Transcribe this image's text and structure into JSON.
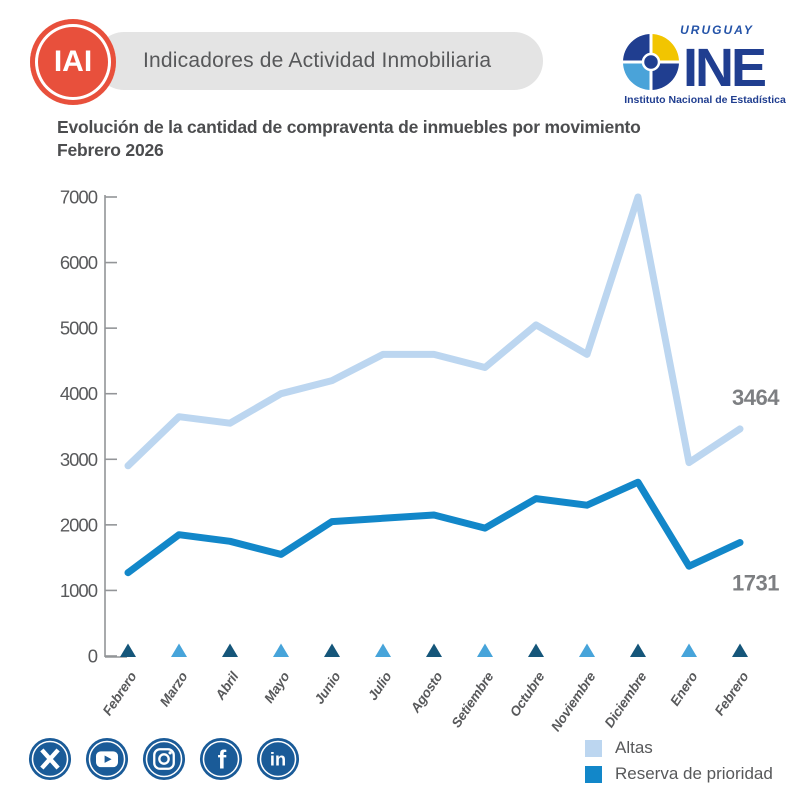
{
  "header": {
    "badge": "IAI",
    "title": "Indicadores de Actividad Inmobiliaria",
    "logo": {
      "country": "URUGUAY",
      "acronym": "INE",
      "subtitle": "Instituto Nacional de Estadística"
    }
  },
  "chart_title": {
    "line1": "Evolución de la cantidad de compraventa de inmuebles por movimiento",
    "line2": "Febrero 2026"
  },
  "chart_data": {
    "type": "line",
    "categories": [
      "Febrero",
      "Marzo",
      "Abril",
      "Mayo",
      "Junio",
      "Julio",
      "Agosto",
      "Setiembre",
      "Octubre",
      "Noviembre",
      "Diciembre",
      "Enero",
      "Febrero"
    ],
    "series": [
      {
        "name": "Altas",
        "color": "#bcd6f0",
        "values": [
          2900,
          3650,
          3550,
          4000,
          4200,
          4600,
          4600,
          4400,
          5050,
          4600,
          7000,
          2950,
          3464
        ],
        "end_label": "3464"
      },
      {
        "name": "Reserva de prioridad",
        "color": "#1287c9",
        "values": [
          1270,
          1850,
          1750,
          1550,
          2050,
          2100,
          2150,
          1950,
          2400,
          2300,
          2650,
          1370,
          1731
        ],
        "end_label": "1731"
      }
    ],
    "month_markers": {
      "shape": "triangle",
      "color_dark": "#15567a",
      "color_light": "#47a4da",
      "pattern": "alternating, first dark"
    },
    "ylim": [
      0,
      7000
    ],
    "yticks": [
      0,
      1000,
      2000,
      3000,
      4000,
      5000,
      6000,
      7000
    ],
    "grid": false,
    "legend_position": "bottom-right"
  },
  "social": {
    "icons": [
      "X",
      "YouTube",
      "Instagram",
      "Facebook",
      "LinkedIn"
    ]
  },
  "colors": {
    "badge_red": "#e8503c",
    "pill_bg": "#e4e4e4",
    "title_text": "#4c4d4f",
    "axis": "#939598",
    "tick_text": "#58595b",
    "value_label": "#7d7f82",
    "ine_blue": "#203e90",
    "ine_yellow": "#f2c500",
    "ine_lightblue": "#4aa3d9",
    "social_blue": "#1a5b98"
  }
}
